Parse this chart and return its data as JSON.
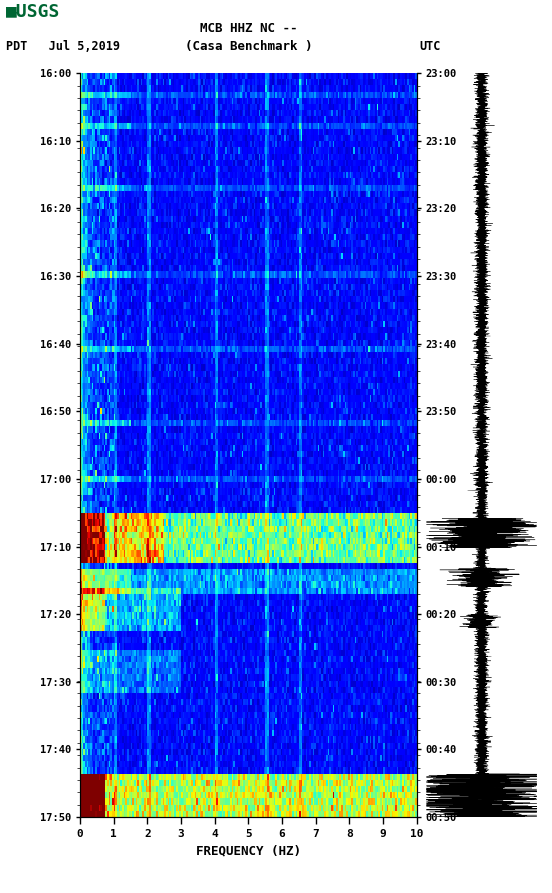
{
  "title_line1": "MCB HHZ NC --",
  "title_line2": "(Casa Benchmark )",
  "left_label": "PDT   Jul 5,2019",
  "right_label": "UTC",
  "xlabel": "FREQUENCY (HZ)",
  "freq_min": 0,
  "freq_max": 10,
  "freq_ticks": [
    0,
    1,
    2,
    3,
    4,
    5,
    6,
    7,
    8,
    9,
    10
  ],
  "time_labels_left": [
    "16:00",
    "16:10",
    "16:20",
    "16:30",
    "16:40",
    "16:50",
    "17:00",
    "17:10",
    "17:20",
    "17:30",
    "17:40",
    "17:50"
  ],
  "time_labels_right": [
    "23:00",
    "23:10",
    "23:20",
    "23:30",
    "23:40",
    "23:50",
    "00:00",
    "00:10",
    "00:20",
    "00:30",
    "00:40",
    "00:50"
  ],
  "n_time": 120,
  "n_freq": 200,
  "colormap": "jet",
  "background_color": "#ffffff",
  "fig_width": 5.52,
  "fig_height": 8.93,
  "usgs_color": "#006633"
}
